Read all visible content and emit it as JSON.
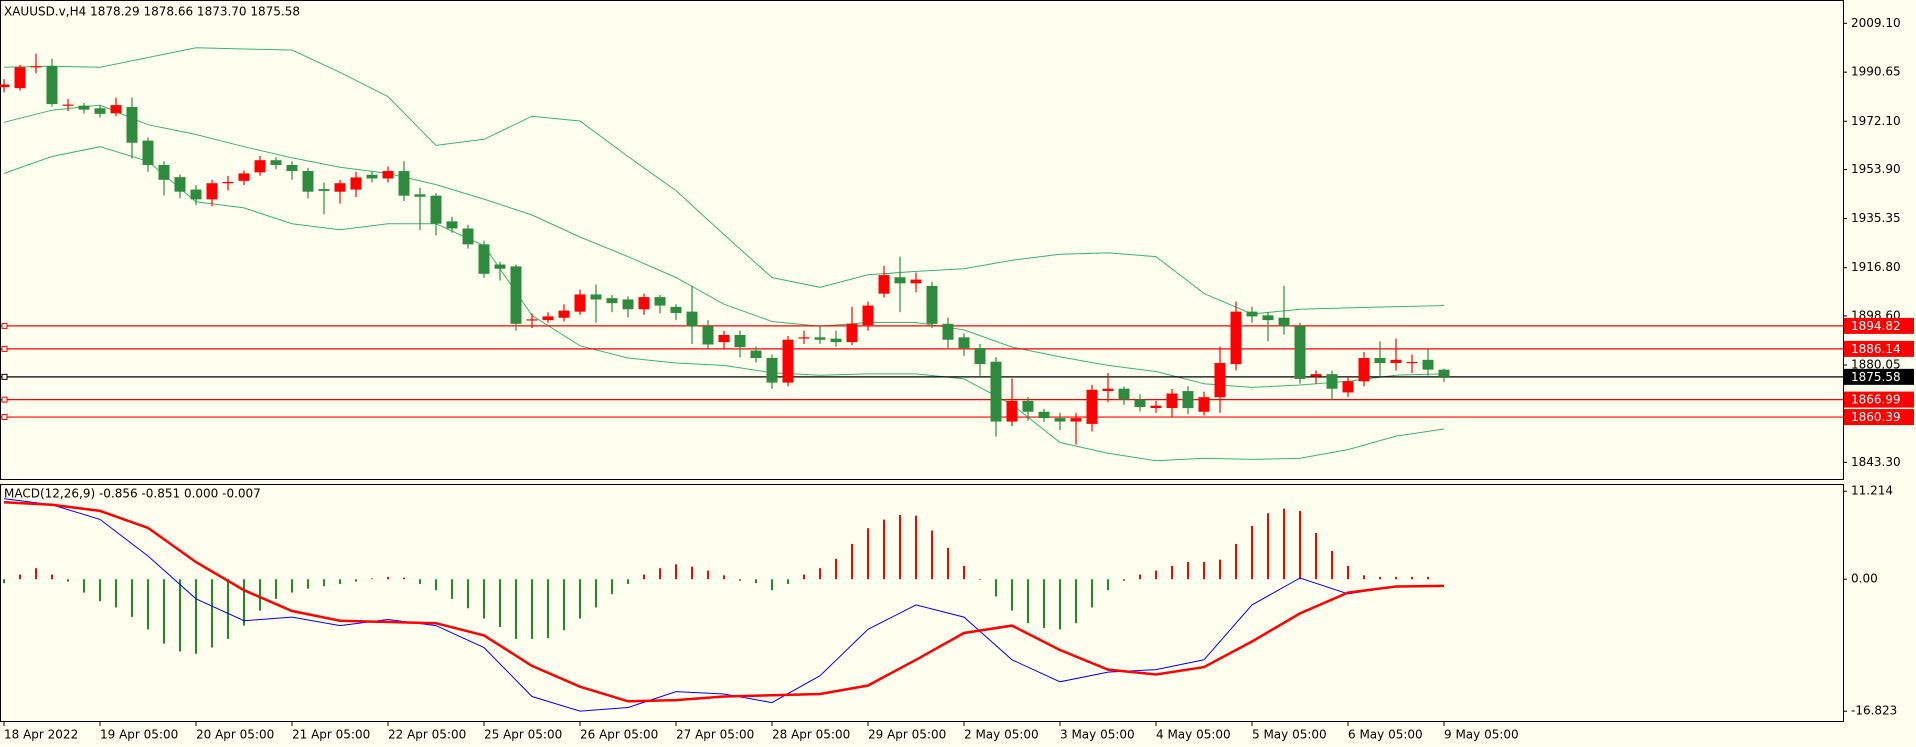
{
  "chart_data": [
    {
      "type": "candlestick",
      "title": "XAUUSD.v,H4  1878.29 1878.66 1873.70 1875.58",
      "categories": [
        "18 Apr 2022",
        null,
        null,
        null,
        null,
        null,
        "19 Apr 05:00",
        null,
        null,
        null,
        null,
        null,
        "20 Apr 05:00",
        null,
        null,
        null,
        null,
        null,
        "21 Apr 05:00",
        null,
        null,
        null,
        null,
        null,
        "22 Apr 05:00",
        null,
        null,
        null,
        null,
        null,
        "25 Apr 05:00",
        null,
        null,
        null,
        null,
        null,
        "26 Apr 05:00",
        null,
        null,
        null,
        null,
        null,
        "27 Apr 05:00",
        null,
        null,
        null,
        null,
        null,
        "28 Apr 05:00",
        null,
        null,
        null,
        null,
        null,
        "29 Apr 05:00",
        null,
        null,
        null,
        null,
        null,
        "2 May 05:00",
        null,
        null,
        null,
        null,
        null,
        "3 May 05:00",
        null,
        null,
        null,
        null,
        null,
        "4 May 05:00",
        null,
        null,
        null,
        null,
        null,
        "5 May 05:00",
        null,
        null,
        null,
        null,
        null,
        "6 May 05:00",
        null,
        null,
        null,
        null,
        null,
        "9 May 05:00"
      ],
      "open": [
        1985,
        1984.6,
        1992.5,
        1993,
        1978,
        1978,
        1977,
        1975.1,
        1977.5,
        1964.8,
        1955.6,
        1951,
        1946.3,
        1942.6,
        1948.7,
        1949.6,
        1952.8,
        1957.4,
        1955.6,
        1953.3,
        1946.5,
        1945.5,
        1946.3,
        1951.9,
        1950.5,
        1953.3,
        1944.5,
        1944,
        1934.3,
        1931.6,
        1925.6,
        1918,
        1917.3,
        1897,
        1897,
        1897.9,
        1900.2,
        1906.7,
        1905.3,
        1904.8,
        1901.1,
        1905.7,
        1902,
        1900.2,
        1894.7,
        1888.7,
        1891.4,
        1885.5,
        1882.7,
        1873.4,
        1890.2,
        1890.5,
        1890,
        1888.7,
        1895.1,
        1907,
        1913.2,
        1910.9,
        1909.9,
        1895.6,
        1890.5,
        1886.4,
        1881.3,
        1858.7,
        1866.5,
        1862.4,
        1860,
        1858.7,
        1857.8,
        1870.2,
        1871.1,
        1867,
        1863.8,
        1863.8,
        1870.2,
        1862.4,
        1867.9,
        1880.4,
        1900.2,
        1898.8,
        1897.9,
        1894.7,
        1875.7,
        1876.6,
        1869.7,
        1873.9,
        1882.7,
        1880.8,
        1880.8,
        1882,
        1878.29
      ],
      "high": [
        1988,
        1993.4,
        1997.6,
        1995.7,
        1980.5,
        1979,
        1978,
        1981,
        1981,
        1966,
        1957,
        1952,
        1948,
        1950,
        1951.5,
        1953.5,
        1959,
        1958.5,
        1957,
        1954.5,
        1949,
        1950,
        1953,
        1953,
        1955,
        1957,
        1947,
        1945,
        1936,
        1933,
        1927,
        1919,
        1918,
        1899.5,
        1900,
        1903,
        1908.5,
        1910.5,
        1906.5,
        1906,
        1907,
        1906.5,
        1903,
        1910,
        1897,
        1893,
        1893,
        1887,
        1884,
        1891,
        1893,
        1895,
        1893,
        1902,
        1904,
        1917.5,
        1921,
        1915,
        1911.5,
        1898,
        1892,
        1888,
        1883,
        1875,
        1868,
        1863.5,
        1862,
        1862,
        1872.5,
        1877,
        1872,
        1869,
        1866.5,
        1871,
        1872,
        1870,
        1887,
        1904,
        1902,
        1900,
        1910,
        1896,
        1878,
        1878,
        1875.5,
        1885,
        1889,
        1890,
        1884,
        1886,
        1878.66
      ],
      "low": [
        1983,
        1983.7,
        1990.2,
        1977.7,
        1976,
        1975,
        1973.5,
        1974,
        1958,
        1953,
        1944,
        1943,
        1940.5,
        1940,
        1946,
        1948,
        1951.5,
        1954,
        1950,
        1943,
        1937,
        1941,
        1943.5,
        1949,
        1949,
        1942,
        1931,
        1929,
        1930,
        1924,
        1913,
        1912,
        1893,
        1894,
        1896,
        1896.5,
        1899,
        1896,
        1900,
        1898,
        1899,
        1899.5,
        1897,
        1888,
        1886,
        1886,
        1883,
        1881,
        1871,
        1872,
        1888,
        1888,
        1887,
        1887.5,
        1893,
        1905.5,
        1900,
        1907.5,
        1894,
        1886,
        1883.5,
        1876,
        1853,
        1857,
        1859,
        1858.5,
        1855.5,
        1850,
        1855,
        1866,
        1865,
        1862.5,
        1862,
        1860.5,
        1861.5,
        1861,
        1862,
        1878,
        1896,
        1889,
        1891.5,
        1873,
        1873,
        1867,
        1868,
        1872,
        1876,
        1878,
        1877,
        1876,
        1873.7
      ],
      "close": [
        1986,
        1992.5,
        1992.9,
        1978.6,
        1978.4,
        1976.5,
        1974.9,
        1978.2,
        1964,
        1955.6,
        1950,
        1945.5,
        1942.6,
        1948.7,
        1949.2,
        1952.4,
        1957.4,
        1955.6,
        1953.3,
        1945.5,
        1945.8,
        1948.7,
        1950.9,
        1950.5,
        1953.3,
        1944,
        1943.6,
        1933.4,
        1931.6,
        1925.6,
        1914.5,
        1916.4,
        1895.6,
        1897.3,
        1898.4,
        1900.6,
        1906.7,
        1904.8,
        1903.4,
        1901.1,
        1905.7,
        1902.5,
        1899.7,
        1894.7,
        1887.8,
        1891.4,
        1886.8,
        1882.7,
        1873.4,
        1889.6,
        1890.5,
        1889.6,
        1888.7,
        1895.6,
        1902.5,
        1914,
        1910.9,
        1912.3,
        1895.6,
        1889.6,
        1886.4,
        1880.4,
        1858.7,
        1866.5,
        1862.4,
        1860,
        1858.7,
        1860,
        1870.7,
        1871.1,
        1867,
        1864.2,
        1864.7,
        1869.3,
        1863.8,
        1867.9,
        1880.8,
        1900.2,
        1898.4,
        1897,
        1894.7,
        1874.8,
        1876.6,
        1871.1,
        1873.9,
        1882.7,
        1880.8,
        1882,
        1881.2,
        1878.3,
        1875.58
      ],
      "up_color": "#ff0000",
      "down_color": "#2e8b3d",
      "line_x": [
        0,
        3,
        6,
        9,
        12,
        15,
        18,
        21,
        24,
        27,
        30,
        33,
        36,
        39,
        42,
        45,
        48,
        51,
        54,
        57,
        60,
        63,
        66,
        69,
        72,
        75,
        78,
        81,
        84,
        87,
        90
      ],
      "bands": [
        {
          "color": "#3cb371",
          "values": [
            1992.5,
            1992.9,
            1992.5,
            1996.2,
            1999.9,
            1999.4,
            1999,
            1990.6,
            1981.4,
            1963,
            1965.3,
            1974,
            1972.2,
            1958.8,
            1945.9,
            1929.3,
            1913.1,
            1909.4,
            1914.1,
            1915.4,
            1916.4,
            1919.6,
            1921.9,
            1922.4,
            1921,
            1907.1,
            1899.3,
            1901.1,
            1901.6,
            1902.1,
            1902.5
          ]
        },
        {
          "color": "#3cb371",
          "values": [
            1971.7,
            1976.3,
            1978.2,
            1970.8,
            1967.1,
            1962.5,
            1958.3,
            1954.7,
            1952.4,
            1948.2,
            1942.7,
            1936.7,
            1928.4,
            1921,
            1913.1,
            1903,
            1896.5,
            1894.7,
            1896.1,
            1896.1,
            1893.3,
            1886.8,
            1883.1,
            1879.9,
            1877.6,
            1873,
            1871.6,
            1872.5,
            1873.9,
            1876.2,
            1876.7
          ]
        },
        {
          "color": "#3cb371",
          "values": [
            1952.4,
            1958.8,
            1962.5,
            1957,
            1941.7,
            1939.4,
            1933.4,
            1931.1,
            1933.4,
            1933.4,
            1925.1,
            1898.8,
            1887.3,
            1882.7,
            1880.8,
            1879.9,
            1877.1,
            1876.2,
            1876.7,
            1876.7,
            1874.8,
            1865.1,
            1850.8,
            1846.7,
            1843.9,
            1844.8,
            1844.4,
            1844.8,
            1848.1,
            1853.2,
            1855.9
          ]
        }
      ],
      "levels": [
        {
          "value": 1894.82,
          "color": "#ff0000"
        },
        {
          "value": 1886.14,
          "color": "#ff0000"
        },
        {
          "value": 1875.58,
          "color": "#000000"
        },
        {
          "value": 1866.99,
          "color": "#ff0000"
        },
        {
          "value": 1860.39,
          "color": "#ff0000"
        }
      ],
      "ylim": [
        1837,
        2017.9
      ],
      "yticks": [
        {
          "value": 2009.1,
          "label": "2009.10"
        },
        1990.65,
        {
          "value": 1972.1,
          "label": "1972.10"
        },
        {
          "value": 1953.9,
          "label": "1953.90"
        },
        1935.35,
        {
          "value": 1916.8,
          "label": "1916.80"
        },
        {
          "value": 1898.6,
          "label": "1898.60"
        },
        1880.05,
        {
          "value": 1843.3,
          "label": "1843.30"
        }
      ]
    },
    {
      "type": "macd",
      "title": "MACD(12,26,9) -0.856 -0.851 0.000 -0.007",
      "histogram": [
        -0.5,
        0.6,
        1.4,
        0.6,
        -0.3,
        -1.7,
        -2.8,
        -3.6,
        -4.8,
        -6.4,
        -8.2,
        -9.2,
        -9.5,
        -8.7,
        -7.6,
        -5.9,
        -4,
        -2.5,
        -1.7,
        -1.2,
        -0.9,
        -0.6,
        -0.3,
        0.1,
        0.3,
        0.2,
        -0.6,
        -1.4,
        -2.5,
        -3.7,
        -5,
        -6.1,
        -7.6,
        -7.6,
        -7.5,
        -6.5,
        -5,
        -3.6,
        -1.9,
        -0.6,
        0.6,
        1.4,
        1.9,
        1.6,
        1.1,
        0.5,
        -0.2,
        -0.5,
        -1.4,
        -0.6,
        0.6,
        1.4,
        2.6,
        4.5,
        6.5,
        7.6,
        8.2,
        8.1,
        6.2,
        4,
        1.7,
        -0.1,
        -2.2,
        -4,
        -5.6,
        -6.2,
        -6.4,
        -5.6,
        -3.6,
        -1.4,
        -0.2,
        0.6,
        1.1,
        1.7,
        2.2,
        2.2,
        2.5,
        4.5,
        6.8,
        8.4,
        9,
        8.7,
        5.9,
        3.6,
        1.7,
        0.5,
        0.3,
        0.3,
        0.3,
        0.3,
        -0.007
      ],
      "up_color": "#ff0000",
      "down_color": "#228b22",
      "line_x": [
        0,
        3,
        6,
        9,
        12,
        15,
        18,
        21,
        24,
        27,
        30,
        33,
        36,
        39,
        42,
        45,
        48,
        51,
        54,
        57,
        60,
        63,
        66,
        69,
        72,
        75,
        78,
        81,
        84,
        87,
        90
      ],
      "lines": [
        {
          "color": "#0000ff",
          "width": 1,
          "values": [
            10.27,
            9.49,
            7.62,
            2.96,
            -2.49,
            -5.29,
            -4.82,
            -5.91,
            -5.13,
            -5.91,
            -8.71,
            -14.94,
            -16.8,
            -16.34,
            -14.32,
            -14.63,
            -15.72,
            -12.29,
            -6.38,
            -3.27,
            -4.82,
            -10.27,
            -13.07,
            -11.83,
            -11.52,
            -10.27,
            -3.27,
            0.16,
            -1.87,
            -0.93,
            -0.856
          ]
        },
        {
          "color": "#ff0000",
          "width": 2.5,
          "values": [
            9.8,
            9.49,
            8.71,
            6.54,
            2.18,
            -1.4,
            -4.05,
            -5.29,
            -5.45,
            -5.6,
            -7.16,
            -11.05,
            -13.69,
            -15.56,
            -15.4,
            -14.94,
            -14.78,
            -14.63,
            -13.54,
            -10.27,
            -6.85,
            -5.91,
            -9.02,
            -11.52,
            -12.14,
            -11.2,
            -7.94,
            -4.36,
            -1.71,
            -0.93,
            -0.851
          ]
        }
      ],
      "ylim": [
        -17.9,
        12.3
      ],
      "yticks": [
        11.214,
        {
          "value": 0,
          "label": "0.00"
        },
        -16.823
      ]
    }
  ]
}
